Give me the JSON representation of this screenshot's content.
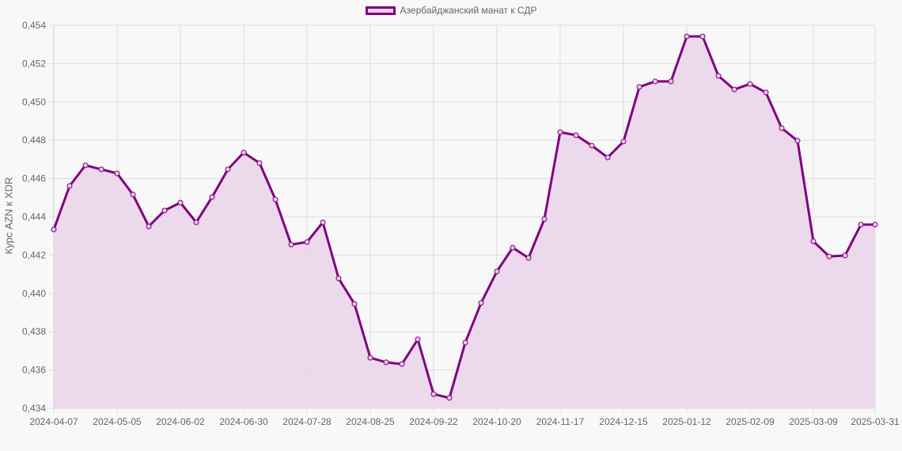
{
  "legend": {
    "label": "Азербайджанский манат к СДР",
    "color": "#800080",
    "fill": "#ead3ea"
  },
  "chart_data": {
    "type": "line",
    "title": "",
    "xlabel": "",
    "ylabel": "Курс AZN к XDR",
    "ylim": [
      0.434,
      0.454
    ],
    "grid": true,
    "legend_position": "top",
    "filled": true,
    "y_ticks": [
      "0,434",
      "0,436",
      "0,438",
      "0,440",
      "0,442",
      "0,444",
      "0,446",
      "0,448",
      "0,450",
      "0,452",
      "0,454"
    ],
    "x_tick_labels": [
      "2024-04-07",
      "2024-05-05",
      "2024-06-02",
      "2024-06-30",
      "2024-07-28",
      "2024-08-25",
      "2024-09-22",
      "2024-10-20",
      "2024-11-17",
      "2024-12-15",
      "2025-01-12",
      "2025-02-09",
      "2025-03-09",
      "2025-03-31"
    ],
    "series": [
      {
        "name": "Азербайджанский манат к СДР",
        "x": [
          "2024-04-07",
          "2024-04-14",
          "2024-04-21",
          "2024-04-28",
          "2024-05-05",
          "2024-05-12",
          "2024-05-19",
          "2024-05-26",
          "2024-06-02",
          "2024-06-09",
          "2024-06-16",
          "2024-06-23",
          "2024-06-30",
          "2024-07-07",
          "2024-07-14",
          "2024-07-21",
          "2024-07-28",
          "2024-08-04",
          "2024-08-11",
          "2024-08-18",
          "2024-08-25",
          "2024-09-01",
          "2024-09-08",
          "2024-09-15",
          "2024-09-22",
          "2024-09-29",
          "2024-10-06",
          "2024-10-13",
          "2024-10-20",
          "2024-10-27",
          "2024-11-03",
          "2024-11-10",
          "2024-11-17",
          "2024-11-24",
          "2024-12-01",
          "2024-12-08",
          "2024-12-15",
          "2024-12-22",
          "2024-12-29",
          "2025-01-05",
          "2025-01-12",
          "2025-01-19",
          "2025-01-26",
          "2025-02-02",
          "2025-02-09",
          "2025-02-16",
          "2025-02-23",
          "2025-03-02",
          "2025-03-09",
          "2025-03-16",
          "2025-03-23",
          "2025-03-30",
          "2025-03-31"
        ],
        "values": [
          0.44334,
          0.44561,
          0.44669,
          0.44648,
          0.44627,
          0.44516,
          0.4435,
          0.44433,
          0.44474,
          0.44371,
          0.44503,
          0.44648,
          0.44735,
          0.44681,
          0.44491,
          0.44255,
          0.44268,
          0.44371,
          0.44078,
          0.43945,
          0.43664,
          0.4364,
          0.43631,
          0.4376,
          0.43474,
          0.43454,
          0.43743,
          0.4395,
          0.44115,
          0.44239,
          0.44185,
          0.44388,
          0.44842,
          0.44826,
          0.44772,
          0.4471,
          0.44793,
          0.45078,
          0.45107,
          0.45107,
          0.45342,
          0.45342,
          0.45136,
          0.45065,
          0.45094,
          0.45049,
          0.44863,
          0.44797,
          0.44272,
          0.44193,
          0.44198,
          0.44359,
          0.44359
        ]
      }
    ]
  }
}
